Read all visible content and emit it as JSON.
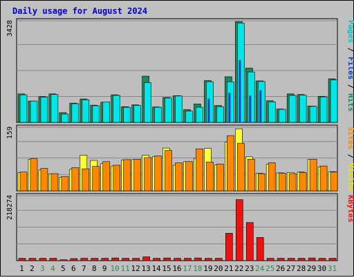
{
  "chart_data": {
    "type": "bar",
    "title": "Daily usage for August 2024",
    "days": [
      "1",
      "2",
      "3",
      "4",
      "5",
      "6",
      "7",
      "8",
      "9",
      "10",
      "11",
      "12",
      "13",
      "14",
      "15",
      "16",
      "17",
      "18",
      "19",
      "20",
      "21",
      "22",
      "23",
      "24",
      "25",
      "26",
      "27",
      "28",
      "29",
      "30",
      "31"
    ],
    "weekend_days": [
      "3",
      "4",
      "10",
      "11",
      "17",
      "18",
      "24",
      "25",
      "31"
    ],
    "colors": {
      "title": "#0000cc",
      "frame": "#c0c0c0",
      "plot_bg": "#bebebe",
      "gridline": "#888888",
      "pages": "#00e6e6",
      "hits": "#1b8a5a",
      "files": "#1040c0",
      "sites": "#ff8800",
      "visits": "#ffff33",
      "kbytes": "#ee1111",
      "weekday_label": "#000000",
      "weekend_label": "#2e8b57"
    },
    "panels": [
      {
        "id": "hits",
        "ymax_label": "3428",
        "ymax": 3428,
        "legend": [
          {
            "text": "Pages",
            "color": "#00c8c8"
          },
          {
            "text": " / ",
            "color": "#000000"
          },
          {
            "text": "Files",
            "color": "#1040c0"
          },
          {
            "text": " / ",
            "color": "#000000"
          },
          {
            "text": "Hits",
            "color": "#1b8a5a"
          }
        ],
        "series": [
          {
            "name": "Hits",
            "values": [
              960,
              720,
              870,
              960,
              330,
              650,
              790,
              580,
              680,
              930,
              530,
              590,
              1560,
              520,
              840,
              900,
              430,
              620,
              1410,
              570,
              1540,
              3400,
              1830,
              1400,
              730,
              450,
              960,
              940,
              550,
              880,
              1470
            ]
          },
          {
            "name": "Pages",
            "values": [
              930,
              720,
              850,
              940,
              280,
              630,
              760,
              560,
              690,
              910,
              510,
              570,
              1340,
              510,
              820,
              890,
              380,
              510,
              1370,
              530,
              1370,
              3350,
              1700,
              1380,
              690,
              440,
              910,
              920,
              540,
              860,
              1430
            ]
          },
          {
            "name": "Files",
            "values": [
              0,
              0,
              0,
              0,
              0,
              0,
              0,
              0,
              0,
              0,
              0,
              0,
              0,
              0,
              0,
              0,
              0,
              0,
              800,
              0,
              1000,
              2100,
              900,
              1080,
              0,
              0,
              0,
              0,
              0,
              0,
              0
            ]
          }
        ]
      },
      {
        "id": "visits",
        "ymax_label": "159",
        "ymax": 159,
        "legend": [
          {
            "text": "Sites",
            "color": "#ff8800"
          },
          {
            "text": " / ",
            "color": "#000000"
          },
          {
            "text": "Visits",
            "color": "#e6e600"
          }
        ],
        "series": [
          {
            "name": "Visits",
            "values": [
              46,
              79,
              52,
              42,
              34,
              54,
              89,
              76,
              68,
              62,
              77,
              78,
              89,
              86,
              107,
              64,
              73,
              81,
              106,
              65,
              122,
              155,
              85,
              44,
              67,
              45,
              46,
              47,
              79,
              60,
              48
            ]
          },
          {
            "name": "Sites",
            "values": [
              47,
              81,
              56,
              43,
              36,
              58,
              55,
              61,
              73,
              64,
              78,
              79,
              83,
              87,
              101,
              70,
              73,
              105,
              72,
              67,
              138,
              119,
              79,
              43,
              70,
              44,
              43,
              46,
              79,
              62,
              47
            ]
          }
        ]
      },
      {
        "id": "kbytes",
        "ymax_label": "218274",
        "ymax": 218274,
        "legend": [
          {
            "text": "KBytes",
            "color": "#ee1111"
          }
        ],
        "series": [
          {
            "name": "KBytes",
            "values": [
              8000,
              8000,
              8000,
              8000,
              3000,
              7000,
              8000,
              8000,
              8000,
              9000,
              8000,
              8000,
              13000,
              8000,
              9000,
              8000,
              8000,
              9000,
              8000,
              8000,
              92000,
              205000,
              128000,
              78000,
              8000,
              8000,
              8000,
              8000,
              9000,
              8000,
              8000
            ]
          }
        ]
      }
    ]
  }
}
